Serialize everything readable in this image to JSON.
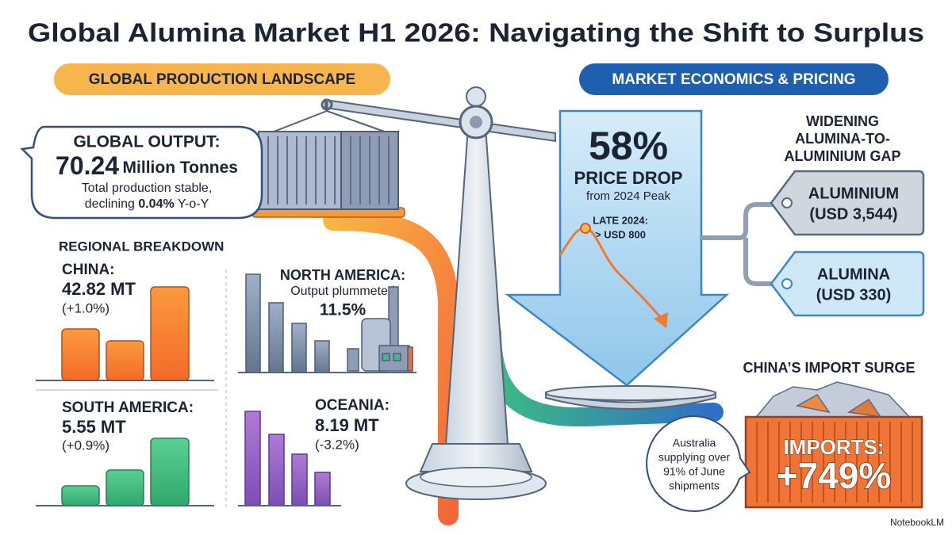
{
  "title": "Global Alumina Market H1 2026: Navigating the Shift to Surplus",
  "production": {
    "heading": "GLOBAL PRODUCTION LANDSCAPE",
    "output": {
      "label": "GLOBAL OUTPUT:",
      "value": "70.24",
      "unit": "Million Tonnes",
      "note_line1": "Total production stable,",
      "note_line2": [
        "declining",
        "0.04%",
        "Y-o-Y"
      ]
    },
    "regional_heading": "REGIONAL BREAKDOWN",
    "regions": [
      {
        "name": "CHINA:",
        "value": "42.82 MT",
        "change": "(+1.0%)"
      },
      {
        "name": "NORTH AMERICA:",
        "note": "Output plummeted",
        "value": "11.5%"
      },
      {
        "name": "SOUTH AMERICA:",
        "value": "5.55 MT",
        "change": "(+0.9%)"
      },
      {
        "name": "OCEANIA:",
        "value": "8.19 MT",
        "change": "(-3.2%)"
      }
    ]
  },
  "economics": {
    "heading": "MARKET ECONOMICS & PRICING",
    "price_drop": {
      "value": "58%",
      "label": "PRICE DROP",
      "note": "from 2024 Peak",
      "annotation": [
        "LATE 2024:",
        "> USD 800"
      ]
    },
    "gap": {
      "heading": [
        "WIDENING",
        "ALUMINA-TO-",
        "ALUMINIUM GAP"
      ],
      "tags": [
        {
          "name": "ALUMINIUM",
          "price": "(USD 3,544)"
        },
        {
          "name": "ALUMINA",
          "price": "(USD 330)"
        }
      ]
    },
    "imports": {
      "heading": "CHINA’S IMPORT SURGE",
      "label": "IMPORTS:",
      "value": "+749%",
      "note": [
        "Australia",
        "supplying over",
        "91% of June",
        "shipments"
      ]
    }
  },
  "footer": "NotebookLM"
}
